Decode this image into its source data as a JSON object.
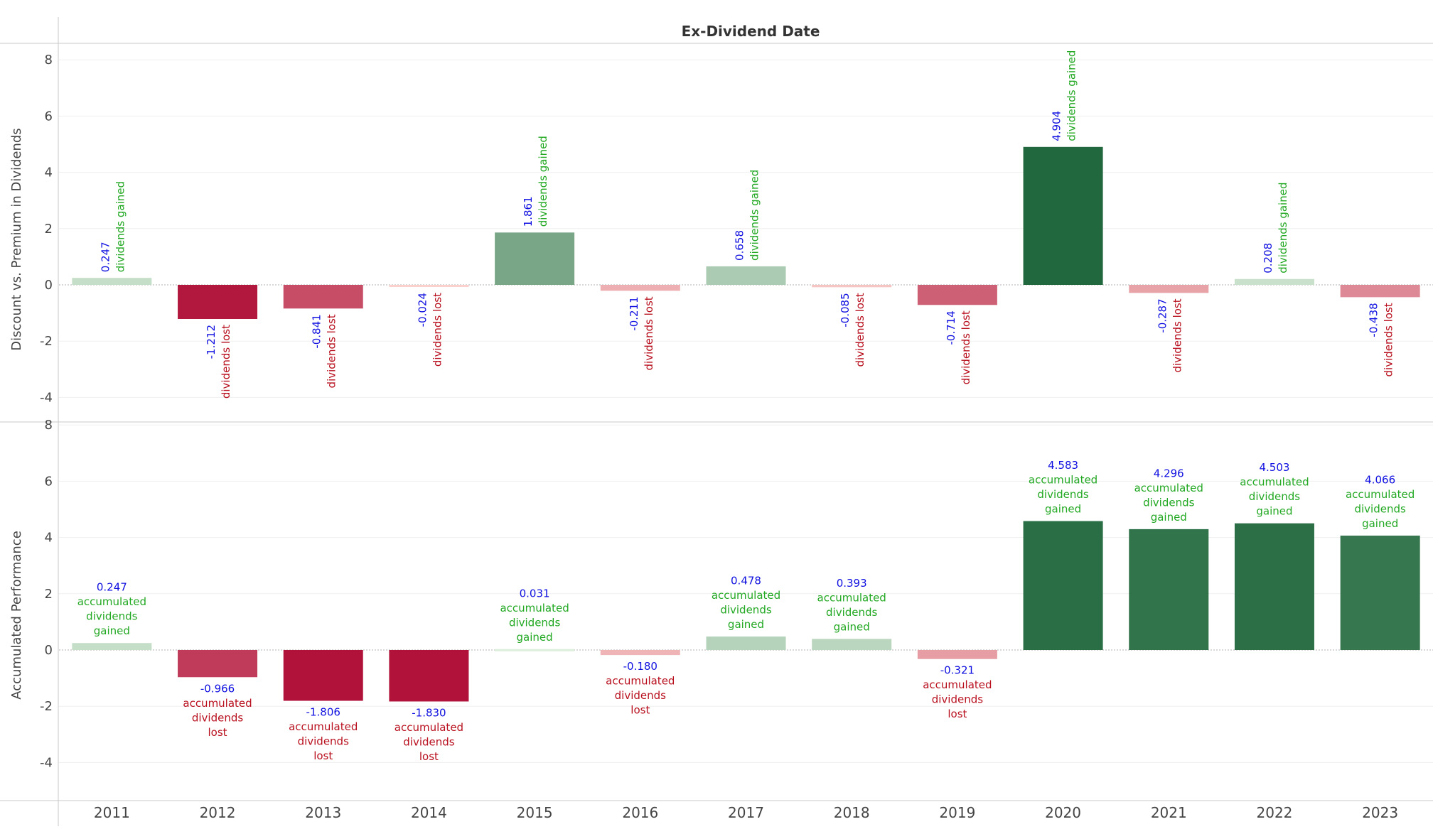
{
  "chart_data": {
    "type": "bar",
    "title": "Ex-Dividend Date",
    "categories": [
      "2011",
      "2012",
      "2013",
      "2014",
      "2015",
      "2016",
      "2017",
      "2018",
      "2019",
      "2020",
      "2021",
      "2022",
      "2023"
    ],
    "panels": [
      {
        "ylabel": "Discount vs. Premium in Dividends",
        "ylim": [
          -5,
          8
        ],
        "yticks": [
          -4,
          -2,
          0,
          2,
          4,
          6,
          8
        ],
        "values": [
          0.247,
          -1.212,
          -0.841,
          -0.024,
          1.861,
          -0.211,
          0.658,
          -0.085,
          -0.714,
          4.904,
          -0.287,
          0.208,
          -0.438
        ],
        "value_labels": [
          "0.247",
          "-1.212",
          "-0.841",
          "-0.024",
          "1.861",
          "-0.211",
          "0.658",
          "-0.085",
          "-0.714",
          "4.904",
          "-0.287",
          "0.208",
          "-0.438"
        ],
        "annotation_positive": "dividends gained",
        "annotation_negative": "dividends lost",
        "label_orientation": "vertical"
      },
      {
        "ylabel": "Accumulated Performance",
        "ylim": [
          -5.5,
          8
        ],
        "yticks": [
          -4,
          -2,
          0,
          2,
          4,
          6,
          8
        ],
        "values": [
          0.247,
          -0.966,
          -1.806,
          -1.83,
          0.031,
          -0.18,
          0.478,
          0.393,
          -0.321,
          4.583,
          4.296,
          4.503,
          4.066
        ],
        "value_labels": [
          "0.247",
          "-0.966",
          "-1.806",
          "-1.830",
          "0.031",
          "-0.180",
          "0.478",
          "0.393",
          "-0.321",
          "4.583",
          "4.296",
          "4.503",
          "4.066"
        ],
        "annotation_positive": [
          "accumulated",
          "dividends",
          "gained"
        ],
        "annotation_negative": [
          "accumulated",
          "dividends",
          "lost"
        ],
        "label_orientation": "horizontal"
      }
    ],
    "colors": {
      "value_label": "#1010e0",
      "gained_text": "#22a822",
      "lost_text": "#b8101e",
      "gridline": "#efefef",
      "zero_line": "#b0b0b0"
    },
    "grid": true,
    "legend": "none"
  }
}
